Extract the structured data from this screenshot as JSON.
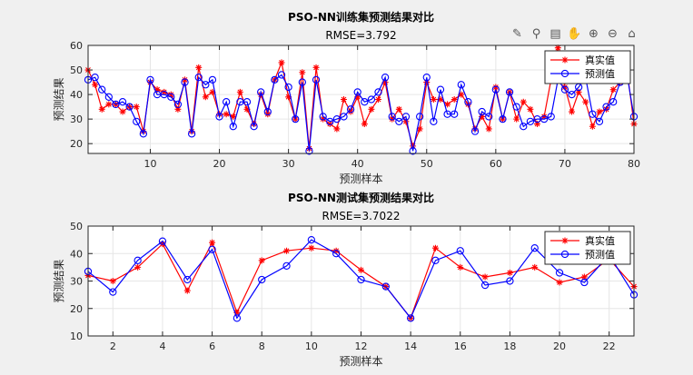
{
  "toolbar": {
    "icons": [
      "brush-icon",
      "datatip-icon",
      "legend-icon",
      "pan-hand-icon",
      "zoom-in-icon",
      "zoom-out-icon",
      "home-icon"
    ],
    "glyphs": [
      "✎",
      "⚲",
      "▤",
      "✋",
      "⊕",
      "⊖",
      "⌂"
    ]
  },
  "colors": {
    "true_series": "#ff0000",
    "pred_series": "#0000ff",
    "axes_bg": "#ffffff",
    "figure_bg": "#f0f0f0",
    "grid": "#e6e6e6"
  },
  "chart_data": [
    {
      "type": "line",
      "title": "PSO-NN训练集预测结果对比",
      "subtitle": "RMSE=3.792",
      "xlabel": "预测样本",
      "ylabel": "预测结果",
      "xlim": [
        1,
        80
      ],
      "ylim": [
        16,
        60
      ],
      "xticks": [
        10,
        20,
        30,
        40,
        50,
        60,
        70,
        80
      ],
      "yticks": [
        20,
        30,
        40,
        50,
        60
      ],
      "grid": true,
      "legend_position": "top-right",
      "x": [
        1,
        2,
        3,
        4,
        5,
        6,
        7,
        8,
        9,
        10,
        11,
        12,
        13,
        14,
        15,
        16,
        17,
        18,
        19,
        20,
        21,
        22,
        23,
        24,
        25,
        26,
        27,
        28,
        29,
        30,
        31,
        32,
        33,
        34,
        35,
        36,
        37,
        38,
        39,
        40,
        41,
        42,
        43,
        44,
        45,
        46,
        47,
        48,
        49,
        50,
        51,
        52,
        53,
        54,
        55,
        56,
        57,
        58,
        59,
        60,
        61,
        62,
        63,
        64,
        65,
        66,
        67,
        68,
        69,
        70,
        71,
        72,
        73,
        74,
        75,
        76,
        77,
        78,
        79,
        80
      ],
      "series": [
        {
          "name": "真实值",
          "marker": "asterisk",
          "color": "#ff0000",
          "values": [
            50,
            44,
            34,
            36,
            36,
            33,
            35,
            35,
            25,
            45,
            42,
            41,
            40,
            34,
            46,
            25,
            51,
            39,
            41,
            32,
            32,
            31,
            41,
            34,
            28,
            40,
            32,
            46,
            53,
            39,
            30,
            49,
            18,
            51,
            30,
            28,
            26,
            38,
            33,
            39,
            28,
            34,
            38,
            45,
            30,
            34,
            29,
            19,
            26,
            45,
            38,
            38,
            36,
            38,
            40,
            36,
            26,
            31,
            26,
            43,
            30,
            41,
            30,
            37,
            34,
            28,
            31,
            46,
            59,
            43,
            33,
            41,
            37,
            27,
            33,
            34,
            42,
            45,
            50,
            28
          ]
        },
        {
          "name": "预测值",
          "marker": "circle",
          "color": "#0000ff",
          "values": [
            46,
            47,
            42,
            39,
            36,
            37,
            35,
            29,
            24,
            46,
            40,
            40,
            39,
            36,
            45,
            24,
            47,
            44,
            46,
            31,
            37,
            27,
            37,
            37,
            27,
            41,
            33,
            46,
            48,
            43,
            30,
            45,
            17,
            46,
            31,
            29,
            30,
            31,
            34,
            41,
            37,
            38,
            41,
            47,
            31,
            29,
            31,
            17,
            31,
            47,
            29,
            42,
            32,
            32,
            44,
            37,
            25,
            33,
            31,
            42,
            30,
            41,
            35,
            27,
            29,
            30,
            30,
            31,
            46,
            42,
            40,
            43,
            47,
            32,
            29,
            35,
            37,
            45,
            48,
            31
          ]
        }
      ]
    },
    {
      "type": "line",
      "title": "PSO-NN测试集预测结果对比",
      "subtitle": "RMSE=3.7022",
      "xlabel": "预测样本",
      "ylabel": "预测结果",
      "xlim": [
        1,
        23
      ],
      "ylim": [
        10,
        50
      ],
      "xticks": [
        2,
        4,
        6,
        8,
        10,
        12,
        14,
        16,
        18,
        20,
        22
      ],
      "yticks": [
        10,
        20,
        30,
        40,
        50
      ],
      "grid": true,
      "legend_position": "top-right",
      "x": [
        1,
        2,
        3,
        4,
        5,
        6,
        7,
        8,
        9,
        10,
        11,
        12,
        13,
        14,
        15,
        16,
        17,
        18,
        19,
        20,
        21,
        22,
        23
      ],
      "series": [
        {
          "name": "真实值",
          "marker": "asterisk",
          "color": "#ff0000",
          "values": [
            32,
            30,
            35,
            43.5,
            26.5,
            44,
            18.5,
            37.5,
            41,
            42,
            41,
            34,
            28,
            16.5,
            42,
            35,
            31.5,
            33,
            35,
            29.5,
            31.5,
            38,
            28
          ]
        },
        {
          "name": "预测值",
          "marker": "circle",
          "color": "#0000ff",
          "values": [
            33.5,
            26,
            37.5,
            44.5,
            30.5,
            41.5,
            16.5,
            30.5,
            35.5,
            45,
            40,
            30.5,
            28,
            16.5,
            37.5,
            41,
            28.5,
            30,
            42,
            33,
            29.5,
            39.5,
            25
          ]
        }
      ]
    }
  ]
}
